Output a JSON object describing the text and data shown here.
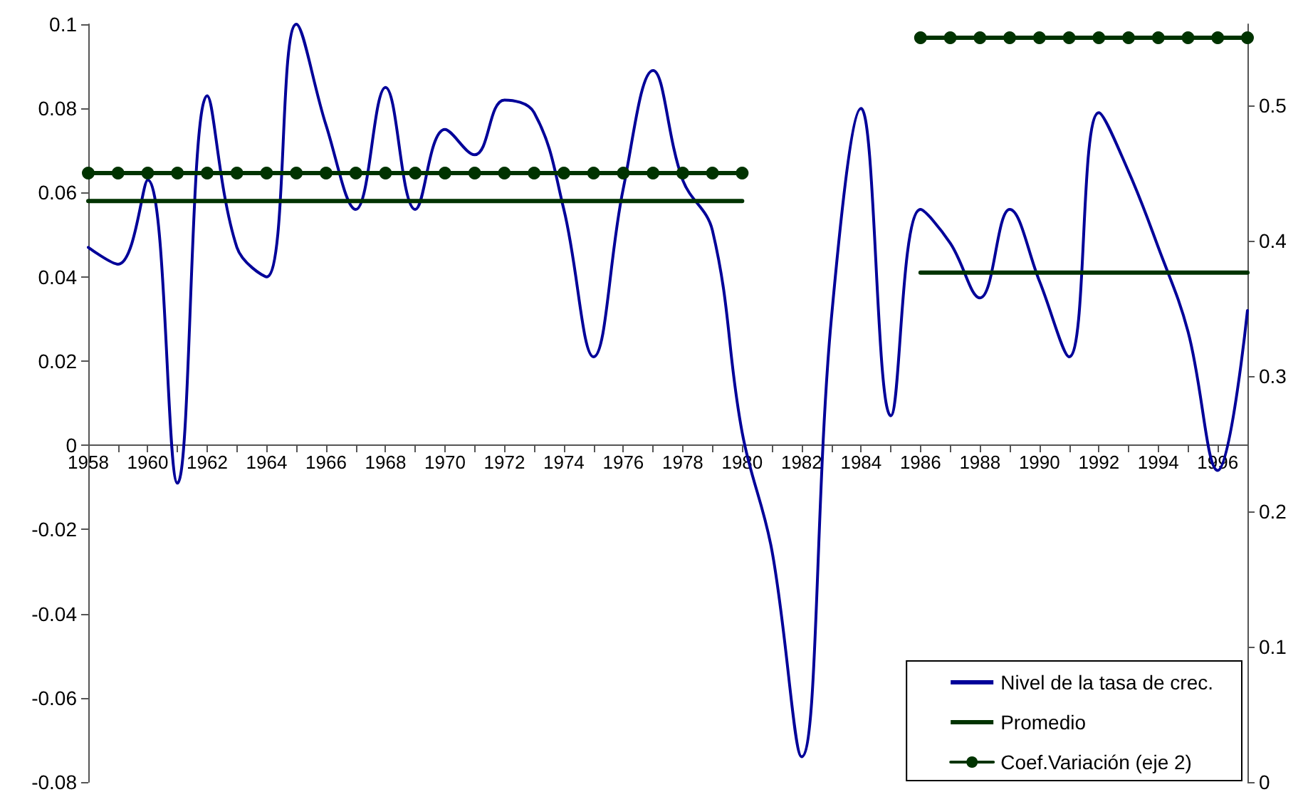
{
  "chart_data": {
    "type": "line",
    "x": [
      1958,
      1959,
      1960,
      1961,
      1962,
      1963,
      1964,
      1965,
      1966,
      1967,
      1968,
      1969,
      1970,
      1971,
      1972,
      1973,
      1974,
      1975,
      1976,
      1977,
      1978,
      1979,
      1980,
      1981,
      1982,
      1983,
      1984,
      1985,
      1986,
      1987,
      1988,
      1989,
      1990,
      1991,
      1992,
      1993,
      1994,
      1995,
      1996,
      1997
    ],
    "series": [
      {
        "name": "Nivel de la tasa de crec.",
        "color": "#000099",
        "marker": "none",
        "values": [
          0.047,
          0.043,
          0.063,
          -0.009,
          0.083,
          0.047,
          0.04,
          0.1,
          0.076,
          0.056,
          0.085,
          0.056,
          0.075,
          0.069,
          0.082,
          0.079,
          0.056,
          0.021,
          0.061,
          0.089,
          0.063,
          0.051,
          0.003,
          -0.025,
          -0.074,
          0.03,
          0.08,
          0.007,
          0.056,
          0.048,
          0.035,
          0.056,
          0.039,
          0.021,
          0.079,
          0.065,
          0.047,
          0.027,
          -0.006,
          0.032
        ]
      },
      {
        "name": "Promedio",
        "color": "#003300",
        "marker": "none",
        "values": [
          0.058,
          0.058,
          0.058,
          0.058,
          0.058,
          0.058,
          0.058,
          0.058,
          0.058,
          0.058,
          0.058,
          0.058,
          0.058,
          0.058,
          0.058,
          0.058,
          0.058,
          0.058,
          0.058,
          0.058,
          0.058,
          0.058,
          0.058,
          null,
          null,
          null,
          null,
          null,
          0.041,
          0.041,
          0.041,
          0.041,
          0.041,
          0.041,
          0.041,
          0.041,
          0.041,
          0.041,
          0.041,
          0.041
        ]
      },
      {
        "name": "Coef.Variación (eje 2)",
        "color": "#003300",
        "marker": "circle",
        "axis": "y2",
        "values": [
          0.45,
          0.45,
          0.45,
          0.45,
          0.45,
          0.45,
          0.45,
          0.45,
          0.45,
          0.45,
          0.45,
          0.45,
          0.45,
          0.45,
          0.45,
          0.45,
          0.45,
          0.45,
          0.45,
          0.45,
          0.45,
          0.45,
          0.45,
          null,
          null,
          null,
          null,
          null,
          0.55,
          0.55,
          0.55,
          0.55,
          0.55,
          0.55,
          0.55,
          0.55,
          0.55,
          0.55,
          0.55,
          0.55
        ]
      }
    ],
    "xlim": [
      1958,
      1997
    ],
    "xticks": [
      1958,
      {
        "value": 1959,
        "label": null
      },
      1960,
      {
        "value": 1961,
        "label": null
      },
      1962,
      {
        "value": 1963,
        "label": null
      },
      1964,
      {
        "value": 1965,
        "label": null
      },
      1966,
      {
        "value": 1967,
        "label": null
      },
      1968,
      {
        "value": 1969,
        "label": null
      },
      1970,
      {
        "value": 1971,
        "label": null
      },
      1972,
      {
        "value": 1973,
        "label": null
      },
      1974,
      {
        "value": 1975,
        "label": null
      },
      1976,
      {
        "value": 1977,
        "label": null
      },
      1978,
      {
        "value": 1979,
        "label": null
      },
      1980,
      {
        "value": 1981,
        "label": null
      },
      1982,
      {
        "value": 1983,
        "label": null
      },
      1984,
      {
        "value": 1985,
        "label": null
      },
      1986,
      {
        "value": 1987,
        "label": null
      },
      1988,
      {
        "value": 1989,
        "label": null
      },
      1990,
      {
        "value": 1991,
        "label": null
      },
      1992,
      {
        "value": 1993,
        "label": null
      },
      1994,
      {
        "value": 1995,
        "label": null
      },
      1996,
      {
        "value": 1997,
        "label": null
      }
    ],
    "ylim": [
      -0.08,
      0.1
    ],
    "yticks": [
      -0.08,
      -0.06,
      -0.04,
      -0.02,
      0,
      0.02,
      0.04,
      0.06,
      0.08,
      0.1
    ],
    "y2lim": [
      0,
      0.56
    ],
    "y2ticks": [
      0,
      0.1,
      0.2,
      0.3,
      0.4,
      0.5
    ],
    "grid": false,
    "legend": "bottom right"
  }
}
